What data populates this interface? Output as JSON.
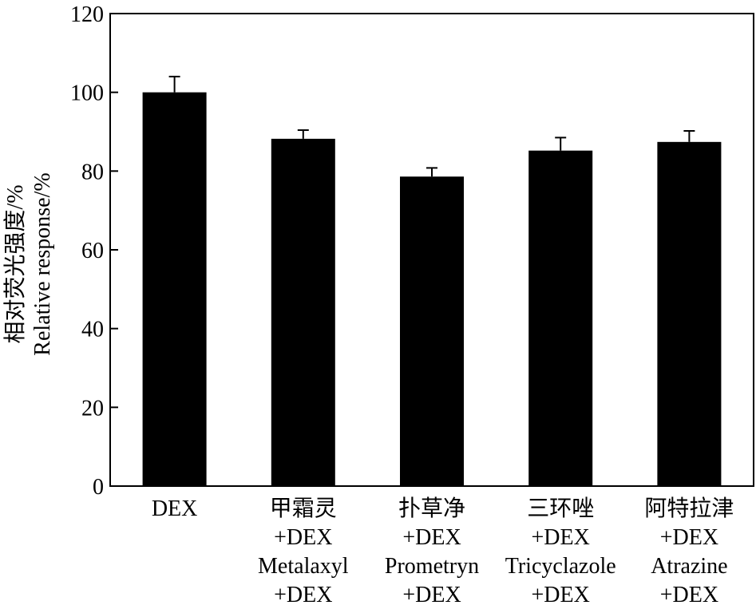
{
  "chart_data": {
    "type": "bar",
    "title": "",
    "ylabel_lines": [
      "相对荧光强度/%",
      "Relative response/%"
    ],
    "xlabel": "",
    "ylim": [
      0,
      120
    ],
    "yticks": [
      0,
      20,
      40,
      60,
      80,
      100,
      120
    ],
    "grid": false,
    "legend": "none",
    "bar_color": "#000000",
    "categories": [
      {
        "lines": [
          "DEX"
        ]
      },
      {
        "lines": [
          "甲霜灵",
          "+DEX",
          "Metalaxyl",
          "+DEX"
        ]
      },
      {
        "lines": [
          "扑草净",
          "+DEX",
          "Prometryn",
          "+DEX"
        ]
      },
      {
        "lines": [
          "三环唑",
          "+DEX",
          "Tricyclazole",
          "+DEX"
        ]
      },
      {
        "lines": [
          "阿特拉津",
          "+DEX",
          "Atrazine",
          "+DEX"
        ]
      }
    ],
    "values": [
      100,
      88.2,
      78.6,
      85.2,
      87.4
    ],
    "errors": [
      4.0,
      2.2,
      2.2,
      3.3,
      2.8
    ]
  }
}
